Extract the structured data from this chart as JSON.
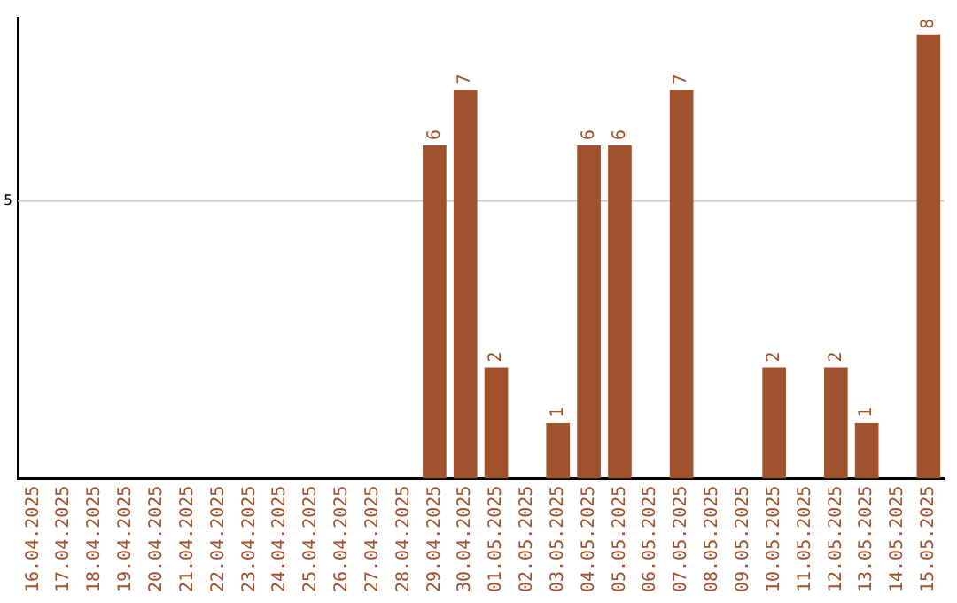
{
  "chart_data": {
    "type": "bar",
    "categories": [
      "16.04.2025",
      "17.04.2025",
      "18.04.2025",
      "19.04.2025",
      "20.04.2025",
      "21.04.2025",
      "22.04.2025",
      "23.04.2025",
      "24.04.2025",
      "25.04.2025",
      "26.04.2025",
      "27.04.2025",
      "28.04.2025",
      "29.04.2025",
      "30.04.2025",
      "01.05.2025",
      "02.05.2025",
      "03.05.2025",
      "04.05.2025",
      "05.05.2025",
      "06.05.2025",
      "07.05.2025",
      "08.05.2025",
      "09.05.2025",
      "10.05.2025",
      "11.05.2025",
      "12.05.2025",
      "13.05.2025",
      "14.05.2025",
      "15.05.2025"
    ],
    "values": [
      null,
      null,
      null,
      null,
      null,
      null,
      null,
      null,
      null,
      null,
      null,
      null,
      null,
      6,
      7,
      2,
      null,
      1,
      6,
      6,
      null,
      7,
      null,
      null,
      2,
      null,
      2,
      1,
      null,
      8
    ],
    "data_labels": true,
    "color": "#a0522d",
    "ylim": [
      0,
      8.3
    ],
    "ref_lines": [
      {
        "axis": "y",
        "value": 5,
        "label": "5",
        "color": "#c8c8c8"
      }
    ],
    "tick_labels": "x",
    "legend": false
  }
}
